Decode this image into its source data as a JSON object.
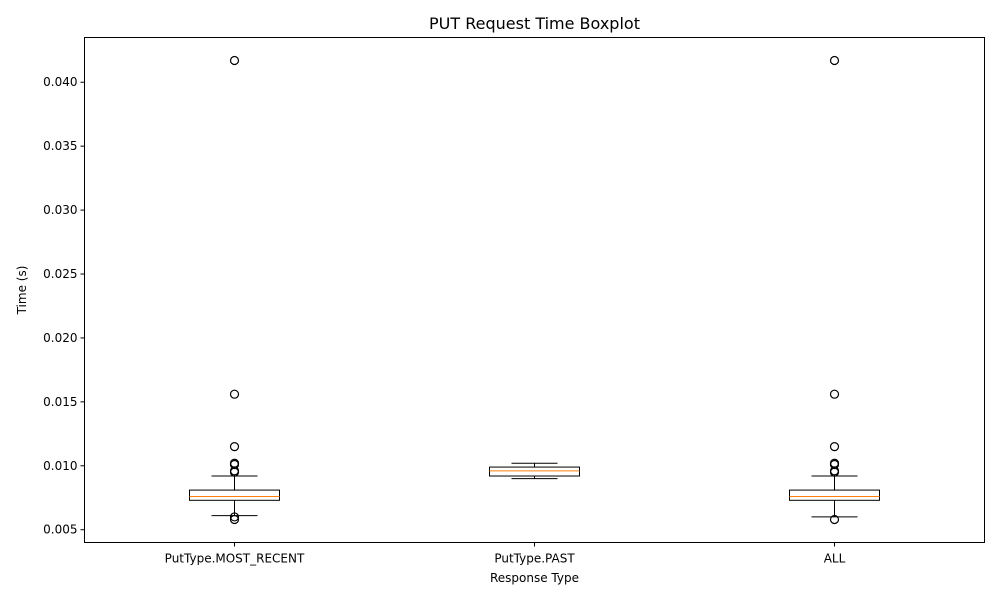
{
  "chart_data": {
    "type": "boxplot",
    "title": "PUT Request Time Boxplot",
    "xlabel": "Response Type",
    "ylabel": "Time (s)",
    "ylim": [
      0.004,
      0.0435
    ],
    "yticks": [
      0.005,
      0.01,
      0.015,
      0.02,
      0.025,
      0.03,
      0.035,
      0.04
    ],
    "ytick_labels": [
      "0.005",
      "0.010",
      "0.015",
      "0.020",
      "0.025",
      "0.030",
      "0.035",
      "0.040"
    ],
    "grid": false,
    "colors": {
      "box": "#000000",
      "median": "#ff7f0e",
      "flier": "#000000"
    },
    "categories": [
      "PutType.MOST_RECENT",
      "PutType.PAST",
      "ALL"
    ],
    "boxes": [
      {
        "label": "PutType.MOST_RECENT",
        "whisker_low": 0.0061,
        "q1": 0.0073,
        "median": 0.0076,
        "q3": 0.0081,
        "whisker_high": 0.0092,
        "fliers": [
          0.0417,
          0.0156,
          0.0115,
          0.0102,
          0.0101,
          0.0096,
          0.0095,
          0.006,
          0.0058
        ]
      },
      {
        "label": "PutType.PAST",
        "whisker_low": 0.009,
        "q1": 0.0092,
        "median": 0.0096,
        "q3": 0.0099,
        "whisker_high": 0.0102,
        "fliers": []
      },
      {
        "label": "ALL",
        "whisker_low": 0.006,
        "q1": 0.0073,
        "median": 0.0076,
        "q3": 0.0081,
        "whisker_high": 0.0092,
        "fliers": [
          0.0417,
          0.0156,
          0.0115,
          0.0102,
          0.0101,
          0.0096,
          0.0095,
          0.0058
        ]
      }
    ]
  }
}
